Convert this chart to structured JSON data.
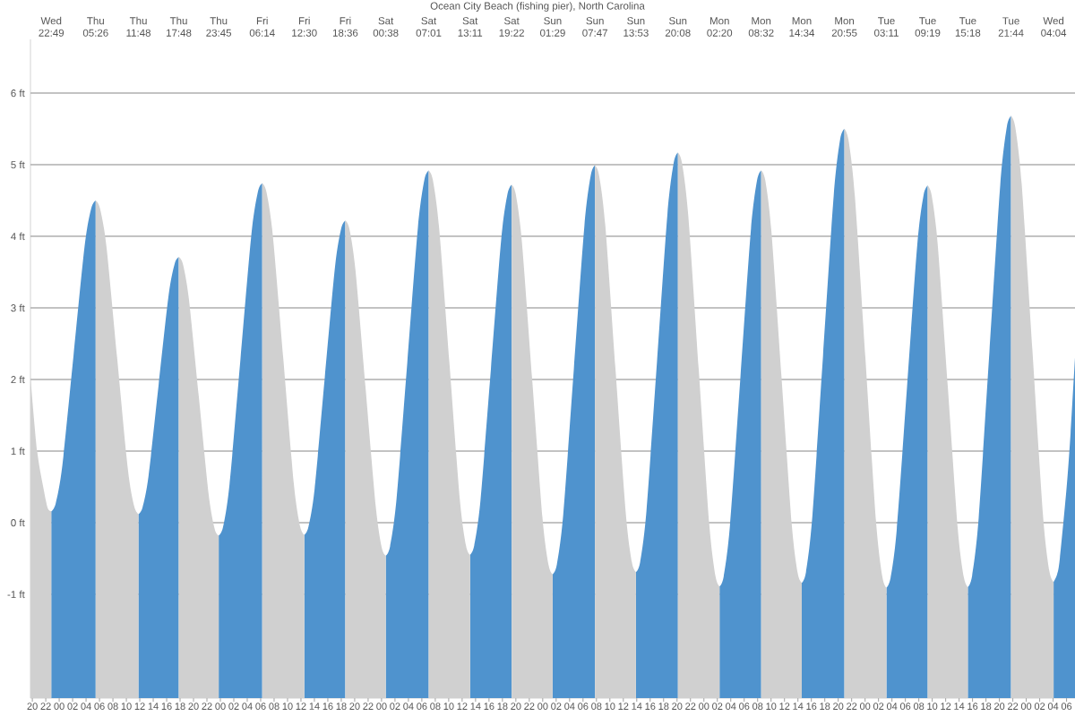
{
  "chart_data": {
    "type": "area",
    "title": "Ocean City Beach (fishing pier), North Carolina",
    "x": [
      19.72,
      20.72,
      21.72,
      22.3,
      22.82,
      23.48,
      24.47,
      26.13,
      27.78,
      28.77,
      29.43,
      30.07,
      31.03,
      32.62,
      34.21,
      35.16,
      35.8,
      36.4,
      37.3,
      38.8,
      40.3,
      41.2,
      41.8,
      42.4,
      43.29,
      44.78,
      46.26,
      47.16,
      47.75,
      48.4,
      49.37,
      50.99,
      52.61,
      53.58,
      54.23,
      54.86,
      55.8,
      57.37,
      58.93,
      59.87,
      60.5,
      61.11,
      62.03,
      63.55,
      65.08,
      65.99,
      66.6,
      67.2,
      68.11,
      69.62,
      71.13,
      72.03,
      72.63,
      73.27,
      74.23,
      75.83,
      77.42,
      78.38,
      79.02,
      79.63,
      80.56,
      82.1,
      83.64,
      84.57,
      85.18,
      85.8,
      86.73,
      88.28,
      89.82,
      90.75,
      91.37,
      91.98,
      92.9,
      94.43,
      95.95,
      96.87,
      97.48,
      98.11,
      99.06,
      100.63,
      102.21,
      103.15,
      103.78,
      104.39,
      105.31,
      106.83,
      108.36,
      109.27,
      109.88,
      110.51,
      111.45,
      113.01,
      114.57,
      115.51,
      116.13,
      116.75,
      117.68,
      119.23,
      120.78,
      121.71,
      122.33,
      122.95,
      123.88,
      125.43,
      126.98,
      127.91,
      128.53,
      129.14,
      130.04,
      131.55,
      133.06,
      133.96,
      134.57,
      135.2,
      136.15,
      137.74,
      139.33,
      140.28,
      140.92,
      141.54,
      142.48,
      144.05,
      145.62,
      146.56,
      147.18,
      147.8,
      148.72,
      150.25,
      151.78,
      152.7,
      153.32,
      153.92,
      154.81,
      156.31,
      157.8,
      158.7,
      159.3,
      159.94,
      160.91,
      162.52,
      164.13,
      165.09,
      165.73,
      166.37,
      167.32,
      168.9,
      170.48,
      171.43,
      172.07,
      172.6,
      173.0,
      174.0,
      174.6,
      175.26
    ],
    "series": [
      {
        "color": "#4f93ce",
        "values": [
          null,
          null,
          null,
          null,
          0.16,
          0.27,
          0.8,
          2.33,
          3.86,
          4.39,
          4.5,
          null,
          null,
          null,
          null,
          null,
          0.12,
          0.21,
          0.65,
          1.92,
          3.18,
          3.62,
          3.71,
          null,
          null,
          null,
          null,
          null,
          -0.18,
          -0.06,
          0.54,
          2.28,
          4.02,
          4.62,
          4.74,
          null,
          null,
          null,
          null,
          null,
          -0.17,
          -0.06,
          0.47,
          2.03,
          3.58,
          4.11,
          4.22,
          null,
          null,
          null,
          null,
          null,
          -0.46,
          -0.33,
          0.33,
          2.23,
          4.13,
          4.79,
          4.92,
          null,
          null,
          null,
          null,
          null,
          -0.45,
          -0.32,
          0.31,
          2.14,
          3.96,
          4.59,
          4.72,
          null,
          null,
          null,
          null,
          null,
          -0.72,
          -0.58,
          0.12,
          2.14,
          4.15,
          4.85,
          4.99,
          null,
          null,
          null,
          null,
          null,
          -0.69,
          -0.55,
          0.17,
          2.24,
          4.31,
          5.03,
          5.17,
          null,
          null,
          null,
          null,
          null,
          -0.89,
          -0.75,
          -0.04,
          2.02,
          4.07,
          4.78,
          4.92,
          null,
          null,
          null,
          null,
          null,
          -0.84,
          -0.69,
          0.09,
          2.33,
          4.57,
          5.35,
          5.5,
          null,
          null,
          null,
          null,
          null,
          -0.91,
          -0.77,
          -0.09,
          1.9,
          3.89,
          4.57,
          4.71,
          null,
          null,
          null,
          null,
          null,
          -0.9,
          -0.74,
          0.06,
          2.39,
          4.72,
          5.52,
          5.68,
          null,
          null,
          null,
          null,
          null,
          -0.83,
          -0.72,
          -0.5,
          0.48,
          1.25,
          2.31
        ]
      },
      {
        "color": "#d0d0d0",
        "values": [
          2.04,
          1.0,
          0.45,
          0.2,
          0.16,
          null,
          null,
          null,
          null,
          null,
          4.5,
          4.39,
          3.86,
          2.31,
          0.76,
          0.23,
          0.12,
          null,
          null,
          null,
          null,
          null,
          3.71,
          3.62,
          3.14,
          1.77,
          0.39,
          -0.09,
          -0.18,
          null,
          null,
          null,
          null,
          null,
          4.74,
          4.62,
          4.02,
          2.29,
          0.55,
          -0.05,
          -0.17,
          null,
          null,
          null,
          null,
          null,
          4.22,
          4.11,
          3.53,
          1.88,
          0.23,
          -0.35,
          -0.46,
          null,
          null,
          null,
          null,
          null,
          4.92,
          4.79,
          4.13,
          2.24,
          0.34,
          -0.32,
          -0.45,
          null,
          null,
          null,
          null,
          null,
          4.72,
          4.59,
          3.92,
          2.0,
          0.08,
          -0.59,
          -0.72,
          null,
          null,
          null,
          null,
          null,
          4.99,
          4.85,
          4.16,
          2.15,
          0.14,
          -0.55,
          -0.69,
          null,
          null,
          null,
          null,
          null,
          5.17,
          5.02,
          4.28,
          2.14,
          0.0,
          -0.74,
          -0.89,
          null,
          null,
          null,
          null,
          null,
          4.92,
          4.78,
          4.08,
          2.04,
          0.0,
          -0.7,
          -0.84,
          null,
          null,
          null,
          null,
          null,
          5.5,
          5.34,
          4.56,
          2.3,
          0.03,
          -0.75,
          -0.91,
          null,
          null,
          null,
          null,
          null,
          4.71,
          4.57,
          3.89,
          1.91,
          -0.08,
          -0.76,
          -0.9,
          null,
          null,
          null,
          null,
          null,
          5.68,
          5.52,
          4.73,
          2.43,
          0.12,
          -0.67,
          -0.83,
          null,
          null,
          null,
          null,
          null
        ]
      }
    ],
    "xlim": [
      19.72,
      175.26
    ],
    "xticks": [
      {
        "value": 20,
        "label": "20"
      },
      {
        "value": 22,
        "label": "22"
      },
      {
        "value": 24,
        "label": "00"
      },
      {
        "value": 26,
        "label": "02"
      },
      {
        "value": 28,
        "label": "04"
      },
      {
        "value": 30,
        "label": "06"
      },
      {
        "value": 32,
        "label": "08"
      },
      {
        "value": 34,
        "label": "10"
      },
      {
        "value": 36,
        "label": "12"
      },
      {
        "value": 38,
        "label": "14"
      },
      {
        "value": 40,
        "label": "16"
      },
      {
        "value": 42,
        "label": "18"
      },
      {
        "value": 44,
        "label": "20"
      },
      {
        "value": 46,
        "label": "22"
      },
      {
        "value": 48,
        "label": "00"
      },
      {
        "value": 50,
        "label": "02"
      },
      {
        "value": 52,
        "label": "04"
      },
      {
        "value": 54,
        "label": "06"
      },
      {
        "value": 56,
        "label": "08"
      },
      {
        "value": 58,
        "label": "10"
      },
      {
        "value": 60,
        "label": "12"
      },
      {
        "value": 62,
        "label": "14"
      },
      {
        "value": 64,
        "label": "16"
      },
      {
        "value": 66,
        "label": "18"
      },
      {
        "value": 68,
        "label": "20"
      },
      {
        "value": 70,
        "label": "22"
      },
      {
        "value": 72,
        "label": "00"
      },
      {
        "value": 74,
        "label": "02"
      },
      {
        "value": 76,
        "label": "04"
      },
      {
        "value": 78,
        "label": "06"
      },
      {
        "value": 80,
        "label": "08"
      },
      {
        "value": 82,
        "label": "10"
      },
      {
        "value": 84,
        "label": "12"
      },
      {
        "value": 86,
        "label": "14"
      },
      {
        "value": 88,
        "label": "16"
      },
      {
        "value": 90,
        "label": "18"
      },
      {
        "value": 92,
        "label": "20"
      },
      {
        "value": 94,
        "label": "22"
      },
      {
        "value": 96,
        "label": "00"
      },
      {
        "value": 98,
        "label": "02"
      },
      {
        "value": 100,
        "label": "04"
      },
      {
        "value": 102,
        "label": "06"
      },
      {
        "value": 104,
        "label": "08"
      },
      {
        "value": 106,
        "label": "10"
      },
      {
        "value": 108,
        "label": "12"
      },
      {
        "value": 110,
        "label": "14"
      },
      {
        "value": 112,
        "label": "16"
      },
      {
        "value": 114,
        "label": "18"
      },
      {
        "value": 116,
        "label": "20"
      },
      {
        "value": 118,
        "label": "22"
      },
      {
        "value": 120,
        "label": "00"
      },
      {
        "value": 122,
        "label": "02"
      },
      {
        "value": 124,
        "label": "04"
      },
      {
        "value": 126,
        "label": "06"
      },
      {
        "value": 128,
        "label": "08"
      },
      {
        "value": 130,
        "label": "10"
      },
      {
        "value": 132,
        "label": "12"
      },
      {
        "value": 134,
        "label": "14"
      },
      {
        "value": 136,
        "label": "16"
      },
      {
        "value": 138,
        "label": "18"
      },
      {
        "value": 140,
        "label": "20"
      },
      {
        "value": 142,
        "label": "22"
      },
      {
        "value": 144,
        "label": "00"
      },
      {
        "value": 146,
        "label": "02"
      },
      {
        "value": 148,
        "label": "04"
      },
      {
        "value": 150,
        "label": "06"
      },
      {
        "value": 152,
        "label": "08"
      },
      {
        "value": 154,
        "label": "10"
      },
      {
        "value": 156,
        "label": "12"
      },
      {
        "value": 158,
        "label": "14"
      },
      {
        "value": 160,
        "label": "16"
      },
      {
        "value": 162,
        "label": "18"
      },
      {
        "value": 164,
        "label": "20"
      },
      {
        "value": 166,
        "label": "22"
      },
      {
        "value": 168,
        "label": "00"
      },
      {
        "value": 170,
        "label": "02"
      },
      {
        "value": 172,
        "label": "04"
      },
      {
        "value": 174,
        "label": "06"
      }
    ],
    "annotations": [
      "Wed 22:49",
      "Thu 05:26",
      "Thu 11:48",
      "Thu 17:48",
      "Thu 23:45",
      "Fri 06:14",
      "Fri 12:30",
      "Fri 18:36",
      "Sat 00:38",
      "Sat 07:01",
      "Sat 13:11",
      "Sat 19:22",
      "Sun 01:29",
      "Sun 07:47",
      "Sun 13:53",
      "Sun 20:08",
      "Mon 02:20",
      "Mon 08:32",
      "Mon 14:34",
      "Mon 20:55",
      "Tue 03:11",
      "Tue 09:19",
      "Tue 15:18",
      "Tue 21:44",
      "Wed 04:04"
    ],
    "ylim": [
      -2.45,
      6.75
    ],
    "yticks": [
      {
        "value": -1,
        "label": "-1 ft"
      },
      {
        "value": 0,
        "label": "0 ft"
      },
      {
        "value": 1,
        "label": "1 ft"
      },
      {
        "value": 2,
        "label": "2 ft"
      },
      {
        "value": 3,
        "label": "3 ft"
      },
      {
        "value": 4,
        "label": "4 ft"
      },
      {
        "value": 5,
        "label": "5 ft"
      },
      {
        "value": 6,
        "label": "6 ft"
      }
    ],
    "grid": "y"
  }
}
